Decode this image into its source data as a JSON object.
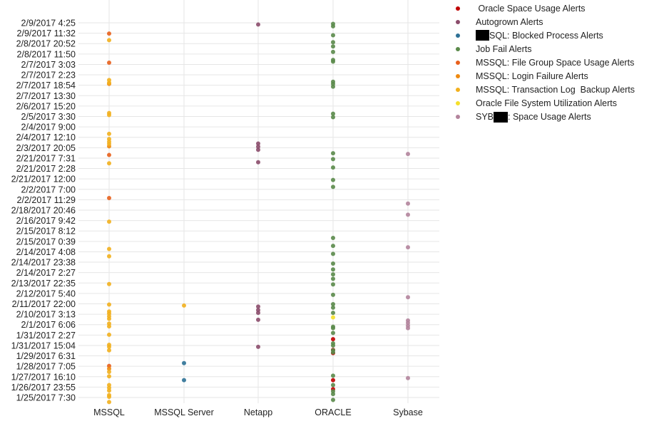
{
  "chart_data": {
    "type": "scatter",
    "title": "",
    "xlabel": "",
    "ylabel": "",
    "categories": [
      "MSSQL",
      "MSSQL Server",
      "Netapp",
      "ORACLE",
      "Sybase"
    ],
    "y_ticks": [
      "2/9/2017 4:25",
      "2/9/2017 11:32",
      "2/8/2017 20:52",
      "2/8/2017 11:50",
      "2/7/2017 3:03",
      "2/7/2017 2:23",
      "2/7/2017 18:54",
      "2/7/2017 13:30",
      "2/6/2017 15:20",
      "2/5/2017 3:30",
      "2/4/2017 9:00",
      "2/4/2017 12:10",
      "2/3/2017 20:05",
      "2/21/2017 7:31",
      "2/21/2017 2:28",
      "2/21/2017 12:00",
      "2/2/2017 7:00",
      "2/2/2017 11:29",
      "2/18/2017 20:46",
      "2/16/2017 9:42",
      "2/15/2017 8:12",
      "2/15/2017 0:39",
      "2/14/2017 4:08",
      "2/14/2017 23:38",
      "2/14/2017 2:27",
      "2/13/2017 22:35",
      "2/12/2017 5:40",
      "2/11/2017 22:00",
      "2/10/2017 3:13",
      "2/1/2017 6:06",
      "1/31/2017 2:27",
      "1/31/2017 15:04",
      "1/29/2017 6:31",
      "1/28/2017 7:05",
      "1/27/2017 16:10",
      "1/26/2017 23:55",
      "1/25/2017 7:30"
    ],
    "y_order": "top-to-bottom, categorical (labels are one of every ~3 levels)",
    "y_levels": 110,
    "grid": true,
    "legend_position": "right",
    "series": [
      {
        "name": " Oracle Space Usage Alerts",
        "color": "#c00000",
        "points": [
          [
            "ORACLE",
            91.2
          ],
          [
            "ORACLE",
            94.3
          ],
          [
            "ORACLE",
            95.2
          ],
          [
            "ORACLE",
            103.0
          ],
          [
            "ORACLE",
            105.6
          ]
        ]
      },
      {
        "name": "Autogrown Alerts",
        "color": "#8b4c6b",
        "points": [
          [
            "Netapp",
            0.5
          ],
          [
            "Netapp",
            34.8
          ],
          [
            "Netapp",
            35.7
          ],
          [
            "Netapp",
            36.6
          ],
          [
            "Netapp",
            40.2
          ],
          [
            "Netapp",
            81.8
          ],
          [
            "Netapp",
            82.8
          ],
          [
            "Netapp",
            83.6
          ],
          [
            "Netapp",
            85.6
          ],
          [
            "Netapp",
            93.4
          ]
        ]
      },
      {
        "name": "SQL: Blocked Process Alerts",
        "color": "#2e7196",
        "points": [
          [
            "MSSQL Server",
            98.1
          ],
          [
            "MSSQL Server",
            103.0
          ]
        ]
      },
      {
        "name": "Job Fail Alerts",
        "color": "#5a8a4a",
        "points": [
          [
            "ORACLE",
            0.3
          ],
          [
            "ORACLE",
            1.0
          ],
          [
            "ORACLE",
            3.6
          ],
          [
            "ORACLE",
            5.6
          ],
          [
            "ORACLE",
            6.8
          ],
          [
            "ORACLE",
            8.4
          ],
          [
            "ORACLE",
            10.7
          ],
          [
            "ORACLE",
            11.2
          ],
          [
            "ORACLE",
            17.0
          ],
          [
            "ORACLE",
            17.6
          ],
          [
            "ORACLE",
            18.4
          ],
          [
            "ORACLE",
            26.2
          ],
          [
            "ORACLE",
            27.2
          ],
          [
            "ORACLE",
            37.6
          ],
          [
            "ORACLE",
            41.7
          ],
          [
            "ORACLE",
            39.3
          ],
          [
            "ORACLE",
            45.3
          ],
          [
            "ORACLE",
            47.3
          ],
          [
            "ORACLE",
            62.0
          ],
          [
            "ORACLE",
            64.3
          ],
          [
            "ORACLE",
            66.6
          ],
          [
            "ORACLE",
            69.4
          ],
          [
            "ORACLE",
            71.1
          ],
          [
            "ORACLE",
            72.5
          ],
          [
            "ORACLE",
            73.8
          ],
          [
            "ORACLE",
            75.4
          ],
          [
            "ORACLE",
            78.4
          ],
          [
            "ORACLE",
            81.1
          ],
          [
            "ORACLE",
            82.1
          ],
          [
            "ORACLE",
            83.6
          ],
          [
            "ORACLE",
            87.6
          ],
          [
            "ORACLE",
            88.0
          ],
          [
            "ORACLE",
            89.4
          ],
          [
            "ORACLE",
            92.4
          ],
          [
            "ORACLE",
            93.0
          ],
          [
            "ORACLE",
            94.4
          ],
          [
            "ORACLE",
            95.0
          ],
          [
            "ORACLE",
            101.7
          ],
          [
            "ORACLE",
            104.4
          ],
          [
            "ORACLE",
            106.2
          ],
          [
            "ORACLE",
            107.0
          ],
          [
            "ORACLE",
            108.7
          ]
        ]
      },
      {
        "name": "MSSQL: File Group Space Usage Alerts",
        "color": "#e8601c",
        "points": [
          [
            "MSSQL",
            3.1
          ],
          [
            "MSSQL",
            11.5
          ],
          [
            "MSSQL",
            38.1
          ],
          [
            "MSSQL",
            50.5
          ],
          [
            "MSSQL",
            98.9
          ]
        ]
      },
      {
        "name": "MSSQL: Login Failure Alerts",
        "color": "#ef8a10",
        "points": [
          [
            "MSSQL",
            17.6
          ],
          [
            "MSSQL",
            35.6
          ],
          [
            "MSSQL",
            99.7
          ]
        ]
      },
      {
        "name": "MSSQL: Transaction Log  Backup Alerts",
        "color": "#f2b01e",
        "points": [
          [
            "MSSQL",
            5.0
          ],
          [
            "MSSQL",
            16.5
          ],
          [
            "MSSQL",
            17.3
          ],
          [
            "MSSQL",
            26.0
          ],
          [
            "MSSQL",
            26.6
          ],
          [
            "MSSQL",
            32.0
          ],
          [
            "MSSQL",
            33.5
          ],
          [
            "MSSQL",
            34.3
          ],
          [
            "MSSQL",
            34.9
          ],
          [
            "MSSQL",
            40.5
          ],
          [
            "MSSQL",
            57.3
          ],
          [
            "MSSQL",
            65.2
          ],
          [
            "MSSQL",
            67.3
          ],
          [
            "MSSQL",
            75.3
          ],
          [
            "MSSQL",
            81.2
          ],
          [
            "MSSQL",
            83.2
          ],
          [
            "MSSQL",
            83.8
          ],
          [
            "MSSQL",
            84.6
          ],
          [
            "MSSQL",
            85.3
          ],
          [
            "MSSQL",
            86.7
          ],
          [
            "MSSQL",
            87.5
          ],
          [
            "MSSQL",
            89.9
          ],
          [
            "MSSQL",
            92.8
          ],
          [
            "MSSQL",
            93.4
          ],
          [
            "MSSQL",
            94.4
          ],
          [
            "MSSQL",
            100.6
          ],
          [
            "MSSQL",
            101.9
          ],
          [
            "MSSQL",
            104.4
          ],
          [
            "MSSQL",
            105.2
          ],
          [
            "MSSQL",
            106.0
          ],
          [
            "MSSQL",
            107.3
          ],
          [
            "MSSQL",
            107.8
          ],
          [
            "MSSQL",
            109.3
          ],
          [
            "MSSQL Server",
            81.5
          ]
        ]
      },
      {
        "name": "Oracle File System Utilization Alerts",
        "color": "#f5e02a",
        "points": [
          [
            "ORACLE",
            84.9
          ]
        ]
      },
      {
        "name": "SYB: Space Usage Alerts",
        "color": "#b3849c",
        "points": [
          [
            "Sybase",
            37.8
          ],
          [
            "Sybase",
            52.1
          ],
          [
            "Sybase",
            55.3
          ],
          [
            "Sybase",
            64.7
          ],
          [
            "Sybase",
            79.1
          ],
          [
            "Sybase",
            85.8
          ],
          [
            "Sybase",
            86.5
          ],
          [
            "Sybase",
            87.3
          ],
          [
            "Sybase",
            88.0
          ],
          [
            "Sybase",
            102.4
          ]
        ]
      }
    ]
  },
  "legend": {
    "items": [
      {
        "label": " Oracle Space Usage Alerts",
        "color": "#c00000"
      },
      {
        "label": "Autogrown Alerts",
        "color": "#8b4c6b"
      },
      {
        "label": "SQL: Blocked Process Alerts",
        "color": "#2e7196"
      },
      {
        "label": "Job Fail Alerts",
        "color": "#5a8a4a"
      },
      {
        "label": "MSSQL: File Group Space Usage Alerts",
        "color": "#e8601c"
      },
      {
        "label": "MSSQL: Login Failure Alerts",
        "color": "#ef8a10"
      },
      {
        "label": "MSSQL: Transaction Log  Backup Alerts",
        "color": "#f2b01e"
      },
      {
        "label": "Oracle File System Utilization Alerts",
        "color": "#f5e02a"
      },
      {
        "label": ": Space Usage Alerts",
        "color": "#b3849c"
      }
    ],
    "blocked_prefix": "",
    "syb_prefix": "SYB"
  }
}
